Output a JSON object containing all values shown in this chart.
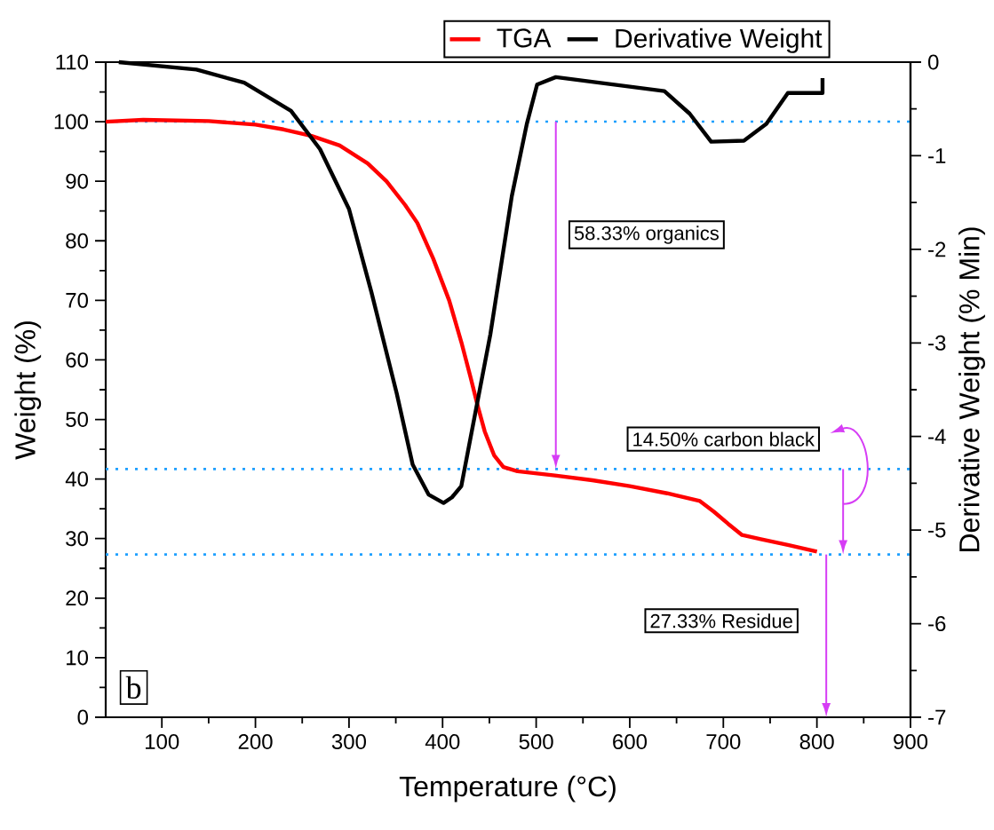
{
  "chart_data": {
    "type": "line",
    "xlabel": "Temperature (°C)",
    "ylabel": "Weight (%)",
    "y2label": "Derivative Weight (% Min)",
    "xlim": [
      40,
      900
    ],
    "xticks": [
      100,
      200,
      300,
      400,
      500,
      600,
      700,
      800,
      900
    ],
    "ylim": [
      0,
      110
    ],
    "yticks": [
      0,
      10,
      20,
      30,
      40,
      50,
      60,
      70,
      80,
      90,
      100,
      110
    ],
    "y2lim": [
      -7,
      0
    ],
    "y2ticks": [
      -7,
      -6,
      -5,
      -4,
      -3,
      -2,
      -1,
      0
    ],
    "series": [
      {
        "name": "TGA",
        "color": "#ff0000",
        "x": [
          40,
          80,
          150,
          200,
          230,
          260,
          290,
          320,
          340,
          360,
          373,
          390,
          407,
          420,
          430,
          438,
          445,
          455,
          465,
          480,
          520,
          560,
          600,
          640,
          675,
          690,
          705,
          720,
          740,
          770,
          800
        ],
        "values": [
          100,
          100.3,
          100.1,
          99.5,
          98.7,
          97.6,
          96,
          93,
          90,
          86,
          83,
          77,
          70,
          63,
          57,
          52,
          48,
          44,
          42,
          41.3,
          40.6,
          39.8,
          38.8,
          37.6,
          36.3,
          34.5,
          32.5,
          30.6,
          29.9,
          28.9,
          27.8
        ]
      },
      {
        "name": "Derivative Weight",
        "color": "#000000",
        "axis": "y2",
        "x": [
          54,
          137,
          188,
          238,
          269,
          300,
          324,
          351,
          368,
          385,
          401,
          410,
          420,
          451,
          474,
          490,
          501,
          521,
          637,
          664,
          687,
          722,
          746,
          769,
          806,
          806
        ],
        "values": [
          0,
          -0.08,
          -0.22,
          -0.52,
          -0.93,
          -1.57,
          -2.46,
          -3.54,
          -4.3,
          -4.62,
          -4.71,
          -4.65,
          -4.53,
          -2.91,
          -1.43,
          -0.66,
          -0.24,
          -0.16,
          -0.31,
          -0.55,
          -0.85,
          -0.84,
          -0.66,
          -0.33,
          -0.33,
          -0.17
        ]
      }
    ],
    "ref_lines": [
      {
        "axis": "y",
        "value": 100,
        "color": "#1ea0ff",
        "line_style": "dotted"
      },
      {
        "axis": "y",
        "value": 41.67,
        "color": "#1ea0ff",
        "line_style": "dotted"
      },
      {
        "axis": "y",
        "value": 27.33,
        "color": "#1ea0ff",
        "line_style": "dotted"
      }
    ],
    "annotations": [
      "58.33% organics",
      "14.50% carbon black",
      "27.33% Residue",
      "b"
    ],
    "legend": "top",
    "line_style": "solid"
  }
}
